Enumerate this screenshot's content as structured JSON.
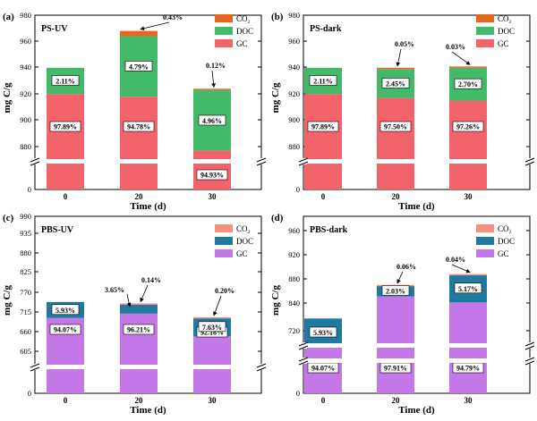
{
  "colors": {
    "gc": "#f2636b",
    "doc": "#43b96a",
    "co2": "#e8661c",
    "gc_pbs": "#c478e8",
    "doc_pbs": "#207aa0",
    "co2_pbs": "#f8907c"
  },
  "chart_data": [
    {
      "type": "bar",
      "stacked": true,
      "panel": "(a)",
      "title": "PS-UV",
      "xlabel": "Time (d)",
      "ylabel": "mg C/g",
      "categories": [
        "0",
        "20",
        "30"
      ],
      "yticks": [
        "0",
        "880",
        "900",
        "920",
        "940",
        "960",
        "980"
      ],
      "legend": [
        "CO₂",
        "DOC",
        "GC"
      ],
      "series": [
        {
          "name": "GC",
          "values": [
            920,
            918,
            877
          ]
        },
        {
          "name": "DOC",
          "values": [
            20,
            46,
            46
          ]
        },
        {
          "name": "CO2",
          "values": [
            0,
            4,
            1
          ]
        }
      ],
      "labels": {
        "GC": [
          "97.89%",
          "94.78%",
          "94.93%"
        ],
        "DOC": [
          "2.11%",
          "4.79%",
          "4.96%"
        ],
        "CO2": [
          "",
          "0.43%",
          "0.12%"
        ]
      }
    },
    {
      "type": "bar",
      "stacked": true,
      "panel": "(b)",
      "title": "PS-dark",
      "xlabel": "Time (d)",
      "ylabel": "mg C/g",
      "categories": [
        "0",
        "20",
        "30"
      ],
      "yticks": [
        "0",
        "880",
        "900",
        "920",
        "940",
        "960",
        "980"
      ],
      "legend": [
        "CO₂",
        "DOC",
        "GC"
      ],
      "series": [
        {
          "name": "GC",
          "values": [
            920,
            917,
            915
          ]
        },
        {
          "name": "DOC",
          "values": [
            20,
            22,
            25
          ]
        },
        {
          "name": "CO2",
          "values": [
            0,
            1,
            1
          ]
        }
      ],
      "labels": {
        "GC": [
          "97.89%",
          "97.50%",
          "97.26%"
        ],
        "DOC": [
          "2.11%",
          "2.45%",
          "2.70%"
        ],
        "CO2": [
          "",
          "0.05%",
          "0.03%"
        ]
      }
    },
    {
      "type": "bar",
      "stacked": true,
      "panel": "(c)",
      "title": "PBS-UV",
      "xlabel": "Time (d)",
      "ylabel": "mg C/g",
      "categories": [
        "0",
        "20",
        "30"
      ],
      "yticks": [
        "0",
        "605",
        "660",
        "715",
        "770",
        "825",
        "880",
        "935",
        "990"
      ],
      "legend": [
        "CO₂",
        "DOC",
        "GC"
      ],
      "series": [
        {
          "name": "GC",
          "values": [
            697,
            709,
            646
          ]
        },
        {
          "name": "DOC",
          "values": [
            44,
            27,
            52
          ]
        },
        {
          "name": "CO2",
          "values": [
            0,
            1,
            1
          ]
        }
      ],
      "labels": {
        "GC": [
          "94.07%",
          "96.21%",
          "92.18%"
        ],
        "DOC": [
          "5.93%",
          "3.65%",
          "7.63%"
        ],
        "CO2": [
          "",
          "0.14%",
          "0.20%"
        ]
      }
    },
    {
      "type": "bar",
      "stacked": true,
      "panel": "(d)",
      "title": "PBS-dark",
      "xlabel": "Time (d)",
      "ylabel": "mg C/g",
      "categories": [
        "0",
        "20",
        "30"
      ],
      "yticks": [
        "0",
        "720",
        "840",
        "880",
        "920",
        "960"
      ],
      "legend": [
        "CO₂",
        "DOC",
        "GC"
      ],
      "series": [
        {
          "name": "GC",
          "values": [
            697,
            851,
            841
          ]
        },
        {
          "name": "DOC",
          "values": [
            44,
            18,
            46
          ]
        },
        {
          "name": "CO2",
          "values": [
            0,
            1,
            1
          ]
        }
      ],
      "labels": {
        "GC": [
          "94.07%",
          "97.91%",
          "94.79%"
        ],
        "DOC": [
          "5.93%",
          "2.03%",
          "5.17%"
        ],
        "CO2": [
          "",
          "0.06%",
          "0.04%"
        ]
      }
    }
  ]
}
